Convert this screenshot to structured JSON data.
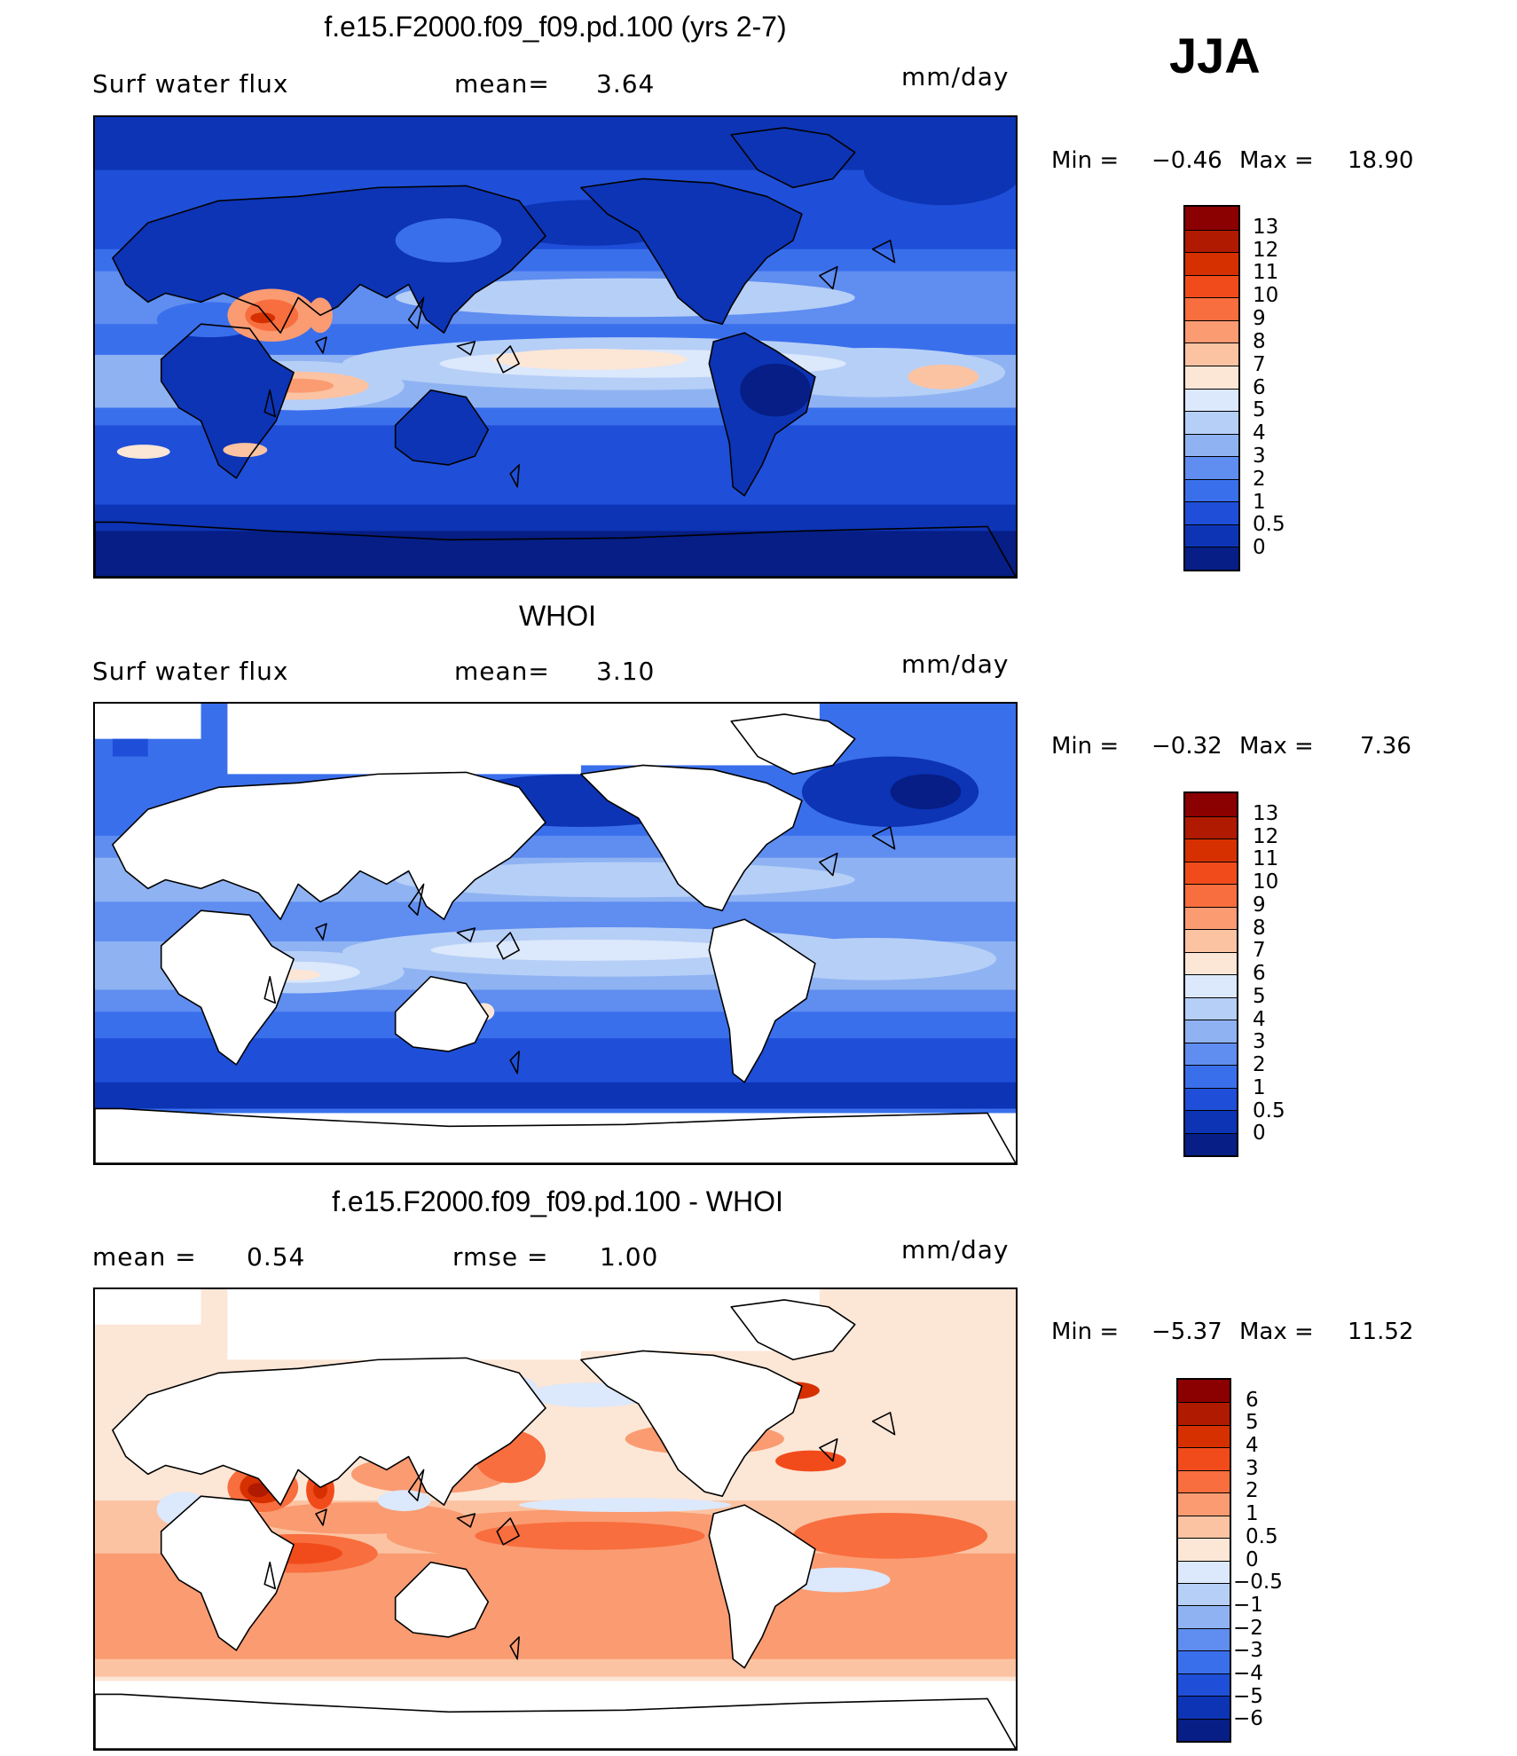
{
  "season": "JJA",
  "panels": [
    {
      "title": "f.e15.F2000.f09_f09.pd.100 (yrs 2-7)",
      "stat_left_label": "Surf water flux",
      "stat_mid_label": "mean=",
      "stat_mid_value": "3.64",
      "units": "mm/day",
      "min_label": "Min =",
      "min_value": "−0.46",
      "max_label": "Max =",
      "max_value": "18.90",
      "field": "model",
      "colorbar": {
        "labels": [
          "13",
          "12",
          "11",
          "10",
          "9",
          "8",
          "7",
          "6",
          "5",
          "4",
          "3",
          "2",
          "1",
          "0.5",
          "0"
        ],
        "colors": [
          "#8b0000",
          "#b01a00",
          "#d63000",
          "#f24b1b",
          "#f86e3e",
          "#fa9b72",
          "#fbc3a2",
          "#fce6d6",
          "#dce8fb",
          "#b6cff7",
          "#8fb3f2",
          "#5f8df0",
          "#3a6fec",
          "#1f4fd8",
          "#0c34b5",
          "#061e85"
        ]
      }
    },
    {
      "title": "WHOI",
      "stat_left_label": "Surf water flux",
      "stat_mid_label": "mean=",
      "stat_mid_value": "3.10",
      "units": "mm/day",
      "min_label": "Min =",
      "min_value": "−0.32",
      "max_label": "Max =",
      "max_value": "7.36",
      "field": "obs",
      "colorbar": {
        "labels": [
          "13",
          "12",
          "11",
          "10",
          "9",
          "8",
          "7",
          "6",
          "5",
          "4",
          "3",
          "2",
          "1",
          "0.5",
          "0"
        ],
        "colors": [
          "#8b0000",
          "#b01a00",
          "#d63000",
          "#f24b1b",
          "#f86e3e",
          "#fa9b72",
          "#fbc3a2",
          "#fce6d6",
          "#dce8fb",
          "#b6cff7",
          "#8fb3f2",
          "#5f8df0",
          "#3a6fec",
          "#1f4fd8",
          "#0c34b5",
          "#061e85"
        ]
      }
    },
    {
      "title": "f.e15.F2000.f09_f09.pd.100 - WHOI",
      "stat_left_label": "mean =",
      "stat_left_value": "0.54",
      "stat_mid_label": "rmse =",
      "stat_mid_value": "1.00",
      "units": "mm/day",
      "min_label": "Min =",
      "min_value": "−5.37",
      "max_label": "Max =",
      "max_value": "11.52",
      "field": "diff",
      "colorbar": {
        "labels": [
          "6",
          "5",
          "4",
          "3",
          "2",
          "1",
          "0.5",
          "0",
          "−0.5",
          "−1",
          "−2",
          "−3",
          "−4",
          "−5",
          "−6"
        ],
        "colors": [
          "#8b0000",
          "#b01a00",
          "#d63000",
          "#f24b1b",
          "#f86e3e",
          "#fa9b72",
          "#fbc3a2",
          "#fce6d6",
          "#dce8fb",
          "#b6cff7",
          "#8fb3f2",
          "#5f8df0",
          "#3a6fec",
          "#1f4fd8",
          "#0c34b5",
          "#061e85"
        ]
      }
    }
  ],
  "chart_data": [
    {
      "type": "heatmap",
      "title": "f.e15.F2000.f09_f09.pd.100 (yrs 2-7)",
      "variable": "Surf water flux",
      "units": "mm/day",
      "mean": 3.64,
      "min": -0.46,
      "max": 18.9,
      "contour_levels": [
        0,
        0.5,
        1,
        2,
        3,
        4,
        5,
        6,
        7,
        8,
        9,
        10,
        11,
        12,
        13
      ]
    },
    {
      "type": "heatmap",
      "title": "WHOI",
      "variable": "Surf water flux",
      "units": "mm/day",
      "mean": 3.1,
      "min": -0.32,
      "max": 7.36,
      "contour_levels": [
        0,
        0.5,
        1,
        2,
        3,
        4,
        5,
        6,
        7,
        8,
        9,
        10,
        11,
        12,
        13
      ]
    },
    {
      "type": "heatmap",
      "title": "f.e15.F2000.f09_f09.pd.100 - WHOI",
      "units": "mm/day",
      "mean": 0.54,
      "rmse": 1.0,
      "min": -5.37,
      "max": 11.52,
      "contour_levels": [
        -6,
        -5,
        -4,
        -3,
        -2,
        -1,
        -0.5,
        0,
        0.5,
        1,
        2,
        3,
        4,
        5,
        6
      ]
    }
  ]
}
